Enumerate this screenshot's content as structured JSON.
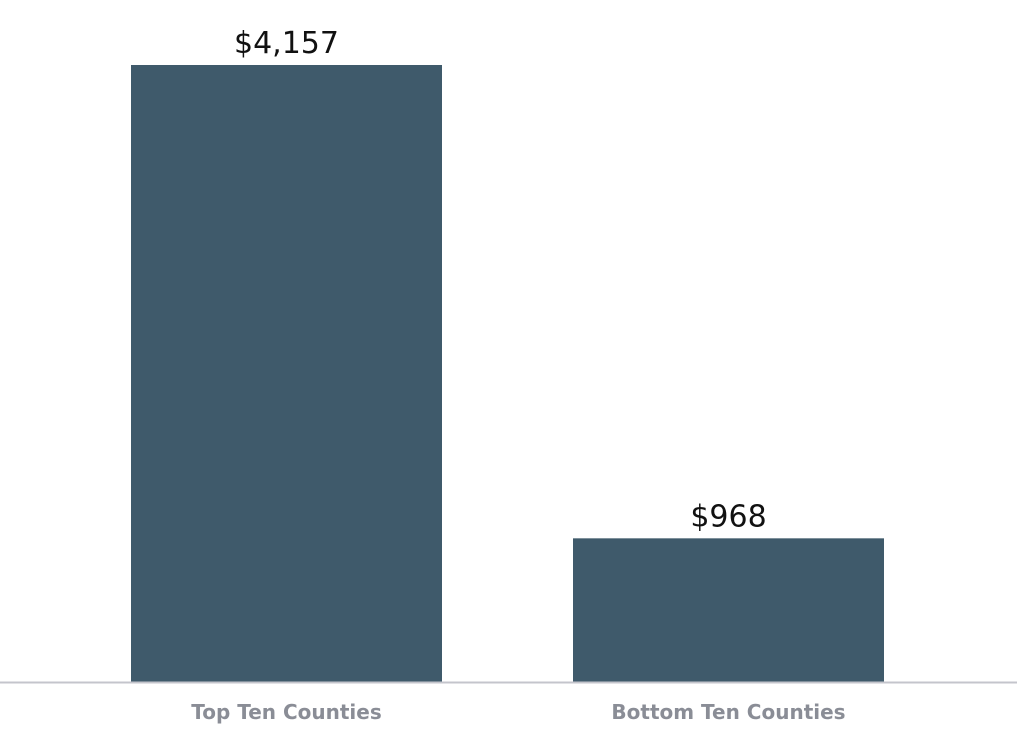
{
  "chart_data": {
    "type": "bar",
    "title": "",
    "xlabel": "",
    "ylabel": "",
    "categories": [
      "Top Ten Counties",
      "Bottom Ten Counties"
    ],
    "values": [
      4157,
      968
    ],
    "data_labels": [
      "$4,157",
      "$968"
    ],
    "ylim": [
      0,
      4157
    ],
    "grid": false,
    "legend": "none",
    "colors": {
      "bar": "#3f5a6b",
      "axis": "#c4c5cc",
      "tick_label": "#8a8d96",
      "data_label": "#111111"
    }
  }
}
